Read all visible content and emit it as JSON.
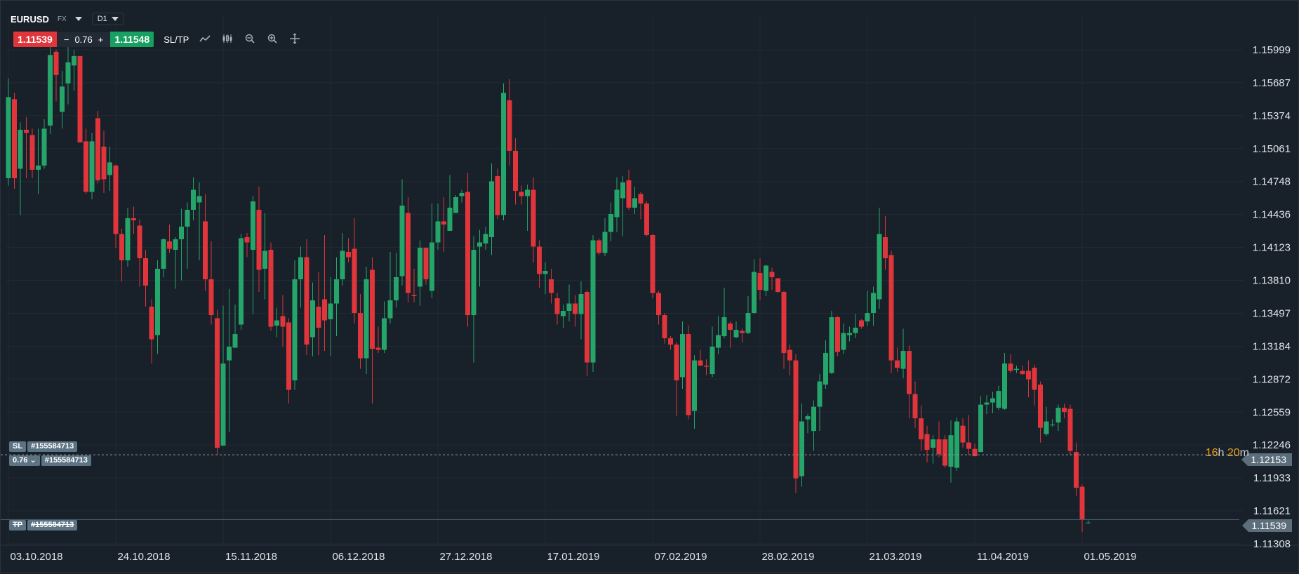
{
  "header": {
    "symbol": "EURUSD",
    "market": "FX",
    "timeframe": "D1",
    "sell_price": "1.11539",
    "buy_price": "1.11548",
    "lot_minus": "−",
    "lot_value": "0.76",
    "lot_plus": "+",
    "sltp_label": "SL/TP",
    "tools": [
      "line-chart-icon",
      "candles-icon",
      "zoom-out-icon",
      "zoom-in-icon",
      "crosshair-icon"
    ]
  },
  "orders": {
    "sl_label": "SL",
    "sl_id": "#155584713",
    "position_lot": "0.76",
    "position_id": "#155584713",
    "tp_label": "TP",
    "tp_id": "#155584713"
  },
  "price_tags": {
    "open_price": "1.12153",
    "current_price": "1.11539"
  },
  "timer": {
    "hours": "16",
    "h_unit": "h",
    "minutes": "20",
    "m_unit": "m"
  },
  "colors": {
    "background": "#18202a",
    "bull": "#26a56a",
    "bear": "#e0353b",
    "grid": "#212a33",
    "axis_text": "#dfe3e8",
    "price_tag": "#5c6e7c",
    "timer": "#f0a020"
  },
  "chart_data": {
    "type": "candlestick",
    "symbol": "EURUSD",
    "timeframe": "D1",
    "y_ticks": [
      "1.15999",
      "1.15687",
      "1.15374",
      "1.15061",
      "1.14748",
      "1.14436",
      "1.14123",
      "1.13810",
      "1.13497",
      "1.13184",
      "1.12872",
      "1.12559",
      "1.12246",
      "1.11933",
      "1.11621",
      "1.11308"
    ],
    "y_range": [
      1.1125,
      1.1608
    ],
    "x_ticks": [
      "03.10.2018",
      "24.10.2018",
      "15.11.2018",
      "06.12.2018",
      "27.12.2018",
      "17.01.2019",
      "07.02.2019",
      "28.02.2019",
      "21.03.2019",
      "11.04.2019",
      "01.05.2019"
    ],
    "x_tick_bar_index": [
      0,
      18,
      36,
      54,
      72,
      90,
      108,
      126,
      144,
      162,
      180
    ],
    "candles": [
      [
        1.1478,
        1.1555,
        1.1573,
        1.1471
      ],
      [
        1.1553,
        1.1478,
        1.1559,
        1.1468
      ],
      [
        1.1487,
        1.1524,
        1.1531,
        1.1443
      ],
      [
        1.1524,
        1.1521,
        1.1536,
        1.1478
      ],
      [
        1.1519,
        1.1486,
        1.1525,
        1.1478
      ],
      [
        1.1486,
        1.149,
        1.1525,
        1.1463
      ],
      [
        1.149,
        1.1525,
        1.1534,
        1.1487
      ],
      [
        1.1528,
        1.1595,
        1.1604,
        1.152
      ],
      [
        1.1598,
        1.1576,
        1.16,
        1.1551
      ],
      [
        1.1541,
        1.1565,
        1.158,
        1.1525
      ],
      [
        1.1568,
        1.1588,
        1.1604,
        1.1548
      ],
      [
        1.1585,
        1.1594,
        1.16,
        1.1561
      ],
      [
        1.1594,
        1.1512,
        1.1592,
        1.1513
      ],
      [
        1.1513,
        1.1465,
        1.1525,
        1.1463
      ],
      [
        1.1465,
        1.1513,
        1.1521,
        1.1458
      ],
      [
        1.1535,
        1.1476,
        1.1542,
        1.1473
      ],
      [
        1.1508,
        1.1477,
        1.1523,
        1.1464
      ],
      [
        1.1481,
        1.1493,
        1.1508,
        1.1466
      ],
      [
        1.149,
        1.1425,
        1.1491,
        1.1412
      ],
      [
        1.1425,
        1.14,
        1.143,
        1.138
      ],
      [
        1.14,
        1.144,
        1.145,
        1.1394
      ],
      [
        1.144,
        1.1438,
        1.1451,
        1.1425
      ],
      [
        1.1433,
        1.1402,
        1.1439,
        1.1375
      ],
      [
        1.1402,
        1.1376,
        1.141,
        1.1356
      ],
      [
        1.1356,
        1.1325,
        1.1363,
        1.1302
      ],
      [
        1.1329,
        1.1392,
        1.14,
        1.1311
      ],
      [
        1.1392,
        1.142,
        1.1421,
        1.1384
      ],
      [
        1.1418,
        1.1411,
        1.1434,
        1.1407
      ],
      [
        1.141,
        1.142,
        1.1422,
        1.1373
      ],
      [
        1.142,
        1.1432,
        1.1449,
        1.1381
      ],
      [
        1.1432,
        1.1448,
        1.1455,
        1.1392
      ],
      [
        1.1448,
        1.1467,
        1.1479,
        1.1438
      ],
      [
        1.1455,
        1.1461,
        1.1474,
        1.14
      ],
      [
        1.1437,
        1.1382,
        1.1463,
        1.1371
      ],
      [
        1.1382,
        1.1348,
        1.1418,
        1.1339
      ],
      [
        1.1345,
        1.1222,
        1.1353,
        1.1215
      ],
      [
        1.1224,
        1.1302,
        1.1357,
        1.1225
      ],
      [
        1.1305,
        1.1318,
        1.1373,
        1.1237
      ],
      [
        1.1317,
        1.133,
        1.1358,
        1.1317
      ],
      [
        1.1339,
        1.1421,
        1.1425,
        1.1334
      ],
      [
        1.1422,
        1.1417,
        1.1426,
        1.1403
      ],
      [
        1.141,
        1.1456,
        1.1461,
        1.1349
      ],
      [
        1.1448,
        1.1391,
        1.147,
        1.137
      ],
      [
        1.1392,
        1.1409,
        1.1445,
        1.1363
      ],
      [
        1.141,
        1.1337,
        1.1417,
        1.1333
      ],
      [
        1.1338,
        1.1343,
        1.1355,
        1.1327
      ],
      [
        1.1347,
        1.1337,
        1.1367,
        1.1318
      ],
      [
        1.1341,
        1.1277,
        1.1345,
        1.1264
      ],
      [
        1.1286,
        1.1382,
        1.14,
        1.1277
      ],
      [
        1.1382,
        1.1403,
        1.1413,
        1.1355
      ],
      [
        1.1403,
        1.132,
        1.142,
        1.131
      ],
      [
        1.1327,
        1.1362,
        1.1379,
        1.1309
      ],
      [
        1.1356,
        1.1336,
        1.1389,
        1.131
      ],
      [
        1.1363,
        1.1343,
        1.1424,
        1.1314
      ],
      [
        1.1344,
        1.1359,
        1.1384,
        1.1309
      ],
      [
        1.1359,
        1.1382,
        1.1403,
        1.1328
      ],
      [
        1.1382,
        1.1409,
        1.1426,
        1.1376
      ],
      [
        1.1408,
        1.1403,
        1.1421,
        1.1398
      ],
      [
        1.1411,
        1.135,
        1.144,
        1.134
      ],
      [
        1.135,
        1.1307,
        1.1368,
        1.1297
      ],
      [
        1.1307,
        1.1382,
        1.1394,
        1.1292
      ],
      [
        1.1391,
        1.1316,
        1.1403,
        1.1264
      ],
      [
        1.1317,
        1.1315,
        1.1337,
        1.1312
      ],
      [
        1.1315,
        1.1345,
        1.1361,
        1.1312
      ],
      [
        1.1345,
        1.1362,
        1.1408,
        1.134
      ],
      [
        1.1362,
        1.1384,
        1.1407,
        1.1355
      ],
      [
        1.1385,
        1.1452,
        1.1477,
        1.1376
      ],
      [
        1.1445,
        1.1369,
        1.146,
        1.136
      ],
      [
        1.1367,
        1.1366,
        1.1392,
        1.136
      ],
      [
        1.1375,
        1.1412,
        1.1419,
        1.1357
      ],
      [
        1.1412,
        1.1382,
        1.1411,
        1.1377
      ],
      [
        1.1371,
        1.1417,
        1.1454,
        1.1364
      ],
      [
        1.1417,
        1.1437,
        1.1454,
        1.141
      ],
      [
        1.1437,
        1.1434,
        1.146,
        1.1408
      ],
      [
        1.1428,
        1.145,
        1.1481,
        1.1428
      ],
      [
        1.1445,
        1.146,
        1.1462,
        1.1453
      ],
      [
        1.1461,
        1.1464,
        1.1467,
        1.1455
      ],
      [
        1.1465,
        1.1348,
        1.1483,
        1.1337
      ],
      [
        1.1348,
        1.141,
        1.1423,
        1.1303
      ],
      [
        1.1413,
        1.1417,
        1.1429,
        1.1375
      ],
      [
        1.1416,
        1.1425,
        1.1432,
        1.141
      ],
      [
        1.1422,
        1.1475,
        1.1492,
        1.1405
      ],
      [
        1.148,
        1.1443,
        1.1487,
        1.1439
      ],
      [
        1.1443,
        1.1559,
        1.1568,
        1.1438
      ],
      [
        1.1552,
        1.1504,
        1.1572,
        1.149
      ],
      [
        1.1504,
        1.1466,
        1.1516,
        1.1453
      ],
      [
        1.1465,
        1.1461,
        1.1471,
        1.1453
      ],
      [
        1.1461,
        1.1467,
        1.1472,
        1.1428
      ],
      [
        1.1467,
        1.1413,
        1.1479,
        1.1398
      ],
      [
        1.1413,
        1.1387,
        1.1419,
        1.1374
      ],
      [
        1.1387,
        1.139,
        1.1398,
        1.1368
      ],
      [
        1.1382,
        1.1369,
        1.1392,
        1.1359
      ],
      [
        1.1364,
        1.1349,
        1.1369,
        1.1339
      ],
      [
        1.1347,
        1.1352,
        1.1358,
        1.1336
      ],
      [
        1.1352,
        1.1359,
        1.1377,
        1.1342
      ],
      [
        1.1359,
        1.1349,
        1.1367,
        1.1337
      ],
      [
        1.1349,
        1.1368,
        1.138,
        1.1325
      ],
      [
        1.137,
        1.1303,
        1.1372,
        1.129
      ],
      [
        1.1303,
        1.1419,
        1.1424,
        1.1294
      ],
      [
        1.1419,
        1.1407,
        1.1421,
        1.1405
      ],
      [
        1.1407,
        1.1427,
        1.144,
        1.1404
      ],
      [
        1.1427,
        1.1444,
        1.1455,
        1.1418
      ],
      [
        1.1441,
        1.1467,
        1.1479,
        1.1427
      ],
      [
        1.1459,
        1.1474,
        1.148,
        1.1423
      ],
      [
        1.1476,
        1.145,
        1.1486,
        1.1448
      ],
      [
        1.145,
        1.1459,
        1.147,
        1.1444
      ],
      [
        1.1463,
        1.1454,
        1.1465,
        1.1439
      ],
      [
        1.1454,
        1.1424,
        1.1456,
        1.1423
      ],
      [
        1.1424,
        1.1369,
        1.1425,
        1.1364
      ],
      [
        1.1369,
        1.1348,
        1.1371,
        1.1339
      ],
      [
        1.1348,
        1.1326,
        1.135,
        1.1321
      ],
      [
        1.1326,
        1.132,
        1.1328,
        1.1315
      ],
      [
        1.132,
        1.1286,
        1.1322,
        1.1252
      ],
      [
        1.1289,
        1.133,
        1.1342,
        1.1278
      ],
      [
        1.133,
        1.1253,
        1.1338,
        1.1249
      ],
      [
        1.1257,
        1.1305,
        1.131,
        1.124
      ],
      [
        1.1305,
        1.13,
        1.1315,
        1.13
      ],
      [
        1.13,
        1.1299,
        1.1306,
        1.1291
      ],
      [
        1.1292,
        1.1318,
        1.1337,
        1.1289
      ],
      [
        1.1317,
        1.1329,
        1.1347,
        1.1311
      ],
      [
        1.1328,
        1.1346,
        1.1374,
        1.1326
      ],
      [
        1.134,
        1.1334,
        1.1342,
        1.1317
      ],
      [
        1.1327,
        1.1334,
        1.1342,
        1.1326
      ],
      [
        1.1333,
        1.1331,
        1.1335,
        1.1322
      ],
      [
        1.1331,
        1.135,
        1.1366,
        1.133
      ],
      [
        1.135,
        1.1389,
        1.1401,
        1.1349
      ],
      [
        1.1388,
        1.1372,
        1.1402,
        1.1362
      ],
      [
        1.1371,
        1.1395,
        1.1396,
        1.1366
      ],
      [
        1.1389,
        1.1384,
        1.1393,
        1.1372
      ],
      [
        1.1383,
        1.137,
        1.1383,
        1.1369
      ],
      [
        1.137,
        1.1312,
        1.1371,
        1.1297
      ],
      [
        1.1315,
        1.1305,
        1.132,
        1.1291
      ],
      [
        1.1305,
        1.1193,
        1.1311,
        1.1179
      ],
      [
        1.1195,
        1.1247,
        1.1264,
        1.1185
      ],
      [
        1.1249,
        1.1252,
        1.1254,
        1.1236
      ],
      [
        1.1238,
        1.1261,
        1.1267,
        1.1219
      ],
      [
        1.1261,
        1.1285,
        1.1292,
        1.1238
      ],
      [
        1.1282,
        1.1312,
        1.1324,
        1.1278
      ],
      [
        1.1293,
        1.1346,
        1.1352,
        1.1292
      ],
      [
        1.1346,
        1.1313,
        1.1347,
        1.1309
      ],
      [
        1.1315,
        1.1331,
        1.134,
        1.1311
      ],
      [
        1.1329,
        1.1331,
        1.1337,
        1.1323
      ],
      [
        1.1331,
        1.1336,
        1.1349,
        1.1326
      ],
      [
        1.1343,
        1.1337,
        1.1344,
        1.1335
      ],
      [
        1.1342,
        1.135,
        1.1371,
        1.1338
      ],
      [
        1.135,
        1.1369,
        1.1375,
        1.1338
      ],
      [
        1.1363,
        1.1425,
        1.145,
        1.1354
      ],
      [
        1.1422,
        1.1402,
        1.1442,
        1.1391
      ],
      [
        1.1405,
        1.1305,
        1.1409,
        1.1293
      ],
      [
        1.1305,
        1.1298,
        1.1317,
        1.1294
      ],
      [
        1.1297,
        1.1314,
        1.1335,
        1.1288
      ],
      [
        1.1314,
        1.1273,
        1.1319,
        1.125
      ],
      [
        1.1273,
        1.125,
        1.1285,
        1.1241
      ],
      [
        1.125,
        1.123,
        1.1262,
        1.1219
      ],
      [
        1.1235,
        1.122,
        1.1243,
        1.1208
      ],
      [
        1.1222,
        1.123,
        1.1234,
        1.1207
      ],
      [
        1.123,
        1.1216,
        1.1247,
        1.1213
      ],
      [
        1.123,
        1.1205,
        1.1234,
        1.1203
      ],
      [
        1.1204,
        1.1234,
        1.1248,
        1.1189
      ],
      [
        1.1203,
        1.1247,
        1.1251,
        1.12
      ],
      [
        1.1243,
        1.1227,
        1.125,
        1.1222
      ],
      [
        1.1227,
        1.1221,
        1.1253,
        1.1215
      ],
      [
        1.1221,
        1.1214,
        1.1226,
        1.1214
      ],
      [
        1.1218,
        1.1263,
        1.1271,
        1.1218
      ],
      [
        1.1263,
        1.1265,
        1.1272,
        1.1254
      ],
      [
        1.1265,
        1.1269,
        1.1275,
        1.1255
      ],
      [
        1.126,
        1.1276,
        1.1281,
        1.1258
      ],
      [
        1.1259,
        1.1302,
        1.1312,
        1.1258
      ],
      [
        1.1302,
        1.1295,
        1.1311,
        1.1293
      ],
      [
        1.1296,
        1.1297,
        1.13,
        1.1293
      ],
      [
        1.1295,
        1.1292,
        1.13,
        1.1291
      ],
      [
        1.1295,
        1.1287,
        1.1305,
        1.127
      ],
      [
        1.1298,
        1.1277,
        1.1301,
        1.1262
      ],
      [
        1.1282,
        1.1241,
        1.1285,
        1.1227
      ],
      [
        1.1235,
        1.1247,
        1.1261,
        1.1233
      ],
      [
        1.1244,
        1.1244,
        1.1249,
        1.1242
      ],
      [
        1.1246,
        1.126,
        1.1263,
        1.1238
      ],
      [
        1.126,
        1.1256,
        1.1264,
        1.125
      ],
      [
        1.1259,
        1.1219,
        1.1263,
        1.1215
      ],
      [
        1.1218,
        1.1184,
        1.1227,
        1.1176
      ],
      [
        1.1185,
        1.1154,
        1.1187,
        1.1142
      ],
      [
        1.1151,
        1.1151,
        1.1153,
        1.115
      ]
    ],
    "last_price": 1.11539,
    "position_open_price": 1.12153
  }
}
